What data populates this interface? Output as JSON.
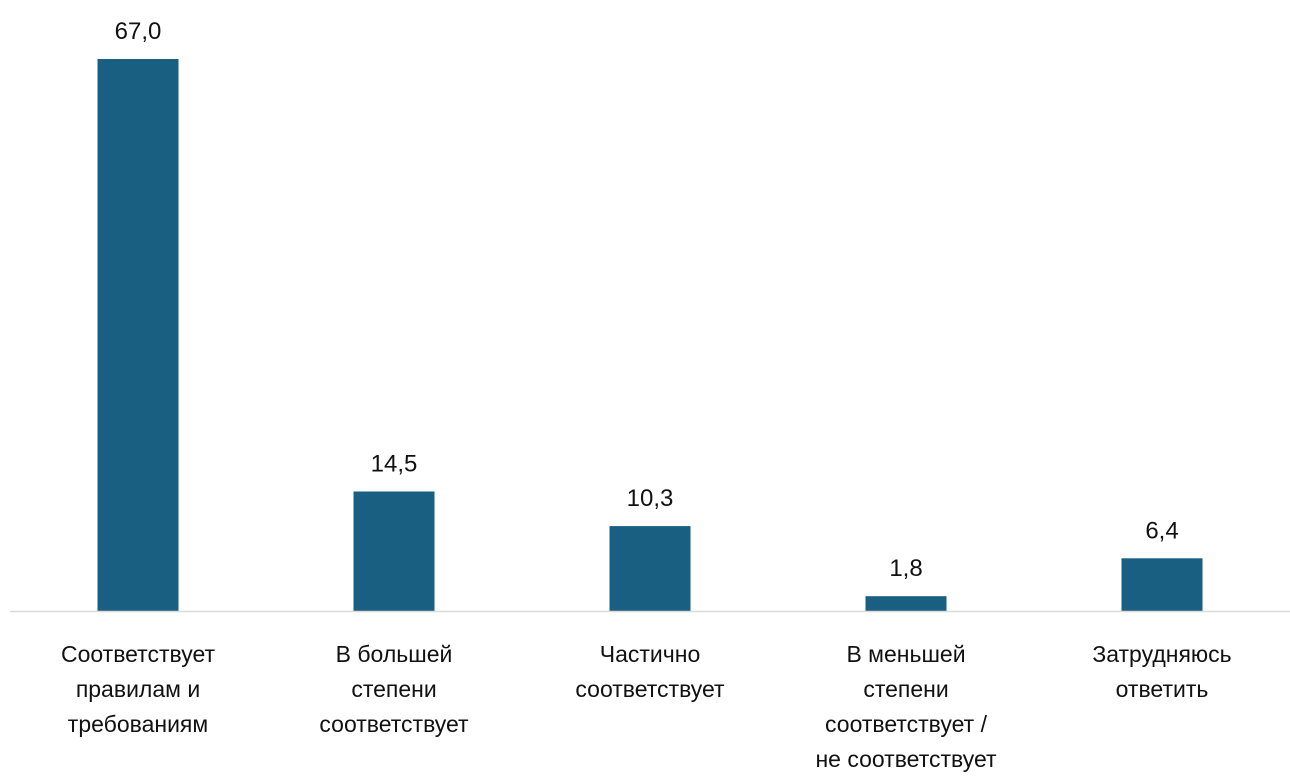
{
  "chart_data": {
    "type": "bar",
    "categories": [
      [
        "Соответствует",
        "правилам и",
        "требованиям"
      ],
      [
        "В большей",
        "степени",
        "соответствует"
      ],
      [
        "Частично",
        "соответствует"
      ],
      [
        "В меньшей",
        "степени",
        "соответствует /",
        "не соответствует"
      ],
      [
        "Затрудняюсь",
        "ответить"
      ]
    ],
    "values": [
      67.0,
      14.5,
      10.3,
      1.8,
      6.4
    ],
    "value_labels": [
      "67,0",
      "14,5",
      "10,3",
      "1,8",
      "6,4"
    ],
    "title": "",
    "xlabel": "",
    "ylabel": "",
    "ylim": [
      0,
      67
    ],
    "grid": false,
    "legend": "none",
    "bar_color": "#185f82",
    "axis_color": "#d9d9d9"
  }
}
